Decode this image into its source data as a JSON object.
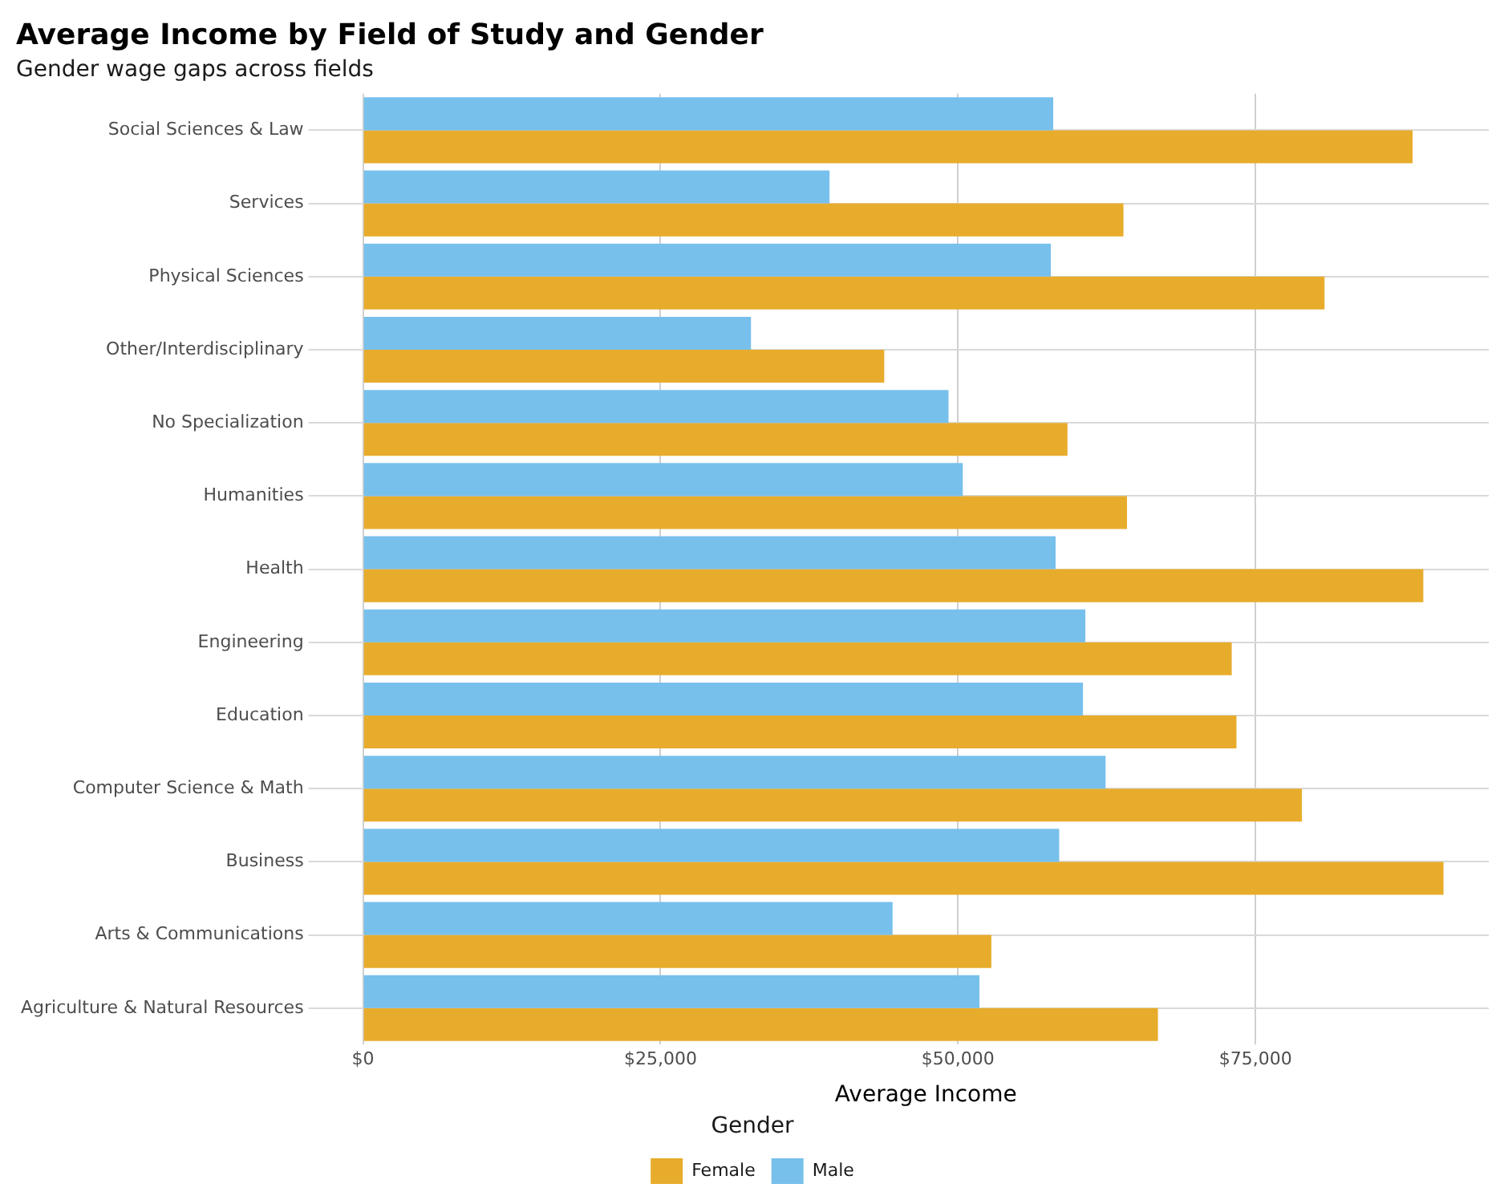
{
  "chart_data": {
    "type": "bar",
    "orientation": "horizontal",
    "title": "Average Income by Field of Study and Gender",
    "subtitle": "Gender wage gaps across fields",
    "xlabel": "Average Income",
    "legend_title": "Gender",
    "legend": "bottom",
    "grid": true,
    "categories": [
      "Social Sciences & Law",
      "Services",
      "Physical Sciences",
      "Other/Interdisciplinary",
      "No Specialization",
      "Humanities",
      "Health",
      "Engineering",
      "Education",
      "Computer Science & Math",
      "Business",
      "Arts & Communications",
      "Agriculture & Natural Resources"
    ],
    "series": [
      {
        "name": "Male",
        "color": "#77c0ec",
        "values": [
          58000,
          39200,
          57800,
          32600,
          49200,
          50400,
          58200,
          60700,
          60500,
          62400,
          58500,
          44500,
          51800
        ]
      },
      {
        "name": "Female",
        "color": "#e8ac2c",
        "values": [
          88200,
          63900,
          80800,
          43800,
          59200,
          64200,
          89100,
          73000,
          73400,
          78900,
          90800,
          52800,
          66800
        ]
      }
    ],
    "xlim": [
      0,
      94600
    ],
    "xticks": [
      {
        "value": 0,
        "label": "$0"
      },
      {
        "value": 25000,
        "label": "$25,000"
      },
      {
        "value": 50000,
        "label": "$50,000"
      },
      {
        "value": 75000,
        "label": "$75,000"
      }
    ]
  }
}
